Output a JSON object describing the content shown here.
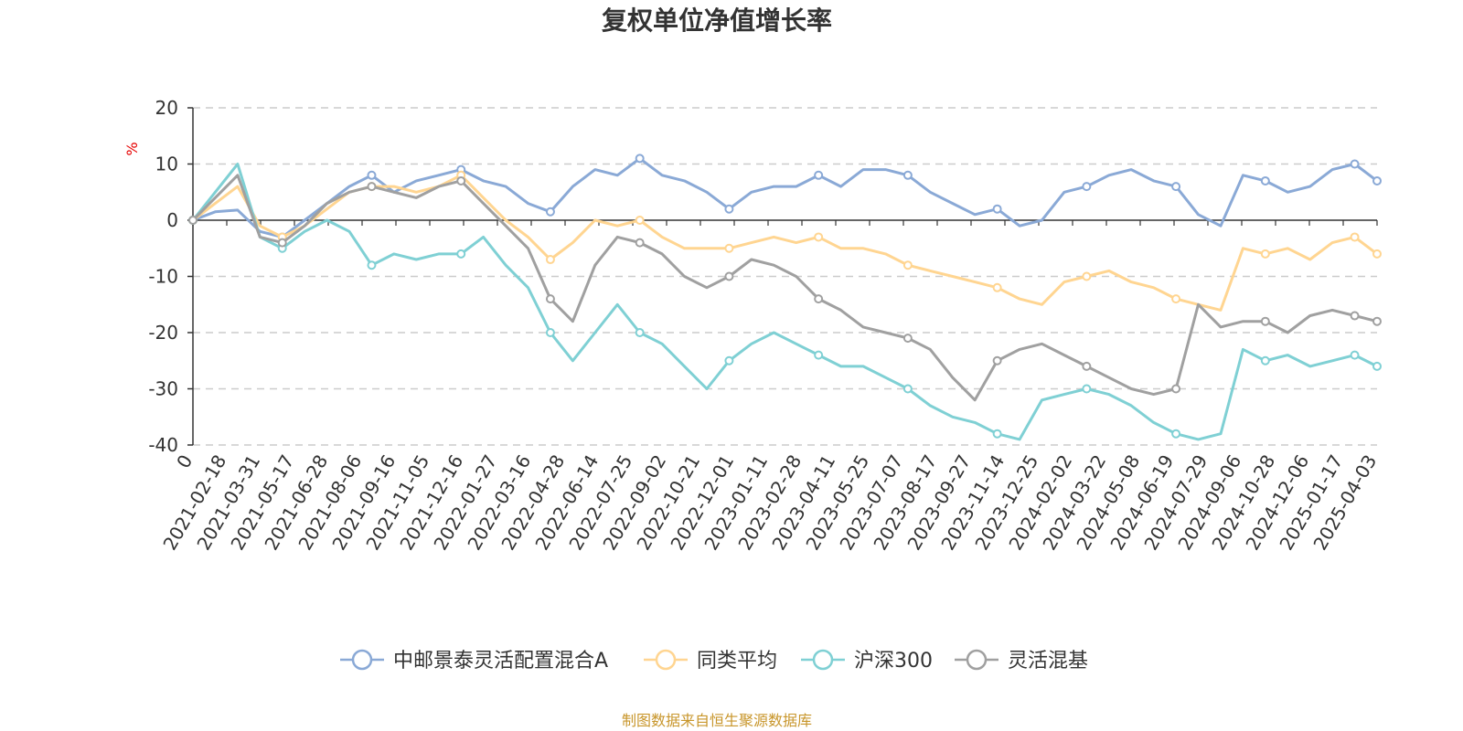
{
  "chart_data": {
    "type": "line",
    "title": "复权单位净值增长率",
    "ylabel": "%",
    "ylim": [
      -40,
      20
    ],
    "yticks": [
      "20",
      "10",
      "0",
      "-10",
      "-20",
      "-30",
      "-40"
    ],
    "ytick_values": [
      20,
      10,
      0,
      -10,
      -20,
      -30,
      -40
    ],
    "grid": true,
    "legend_position": "bottom-center",
    "x_labels": [
      "0",
      "2021-02-18",
      "2021-03-31",
      "2021-05-17",
      "2021-06-28",
      "2021-08-06",
      "2021-09-16",
      "2021-11-05",
      "2021-12-16",
      "2022-01-27",
      "2022-03-16",
      "2022-04-28",
      "2022-06-14",
      "2022-07-25",
      "2022-09-02",
      "2022-10-21",
      "2022-12-01",
      "2023-01-11",
      "2023-02-28",
      "2023-04-11",
      "2023-05-25",
      "2023-07-07",
      "2023-08-17",
      "2023-09-27",
      "2023-11-14",
      "2023-12-25",
      "2024-02-02",
      "2024-03-22",
      "2024-05-08",
      "2024-06-19",
      "2024-07-29",
      "2024-09-06",
      "2024-10-28",
      "2024-12-06",
      "2025-01-17",
      "2025-04-03"
    ],
    "series": [
      {
        "name": "中邮景泰灵活配置混合A",
        "color": "#8aa9d6",
        "values": [
          0,
          1.5,
          1.8,
          -2,
          -3,
          0,
          3,
          6,
          8,
          5,
          7,
          8,
          9,
          7,
          6,
          3,
          1.5,
          6,
          9,
          8,
          11,
          8,
          7,
          5,
          2,
          5,
          6,
          6,
          8,
          6,
          9,
          9,
          8,
          5,
          3,
          1,
          2,
          -1,
          0,
          5,
          6,
          8,
          9,
          7,
          6,
          1,
          -1,
          8,
          7,
          5,
          6,
          9,
          10,
          7
        ]
      },
      {
        "name": "同类平均",
        "color": "#ffd591",
        "values": [
          0,
          3,
          6,
          -1,
          -3,
          -1,
          2,
          5,
          6,
          6,
          5,
          6,
          8,
          4,
          0,
          -3,
          -7,
          -4,
          0,
          -1,
          0,
          -3,
          -5,
          -5,
          -5,
          -4,
          -3,
          -4,
          -3,
          -5,
          -5,
          -6,
          -8,
          -9,
          -10,
          -11,
          -12,
          -14,
          -15,
          -11,
          -10,
          -9,
          -11,
          -12,
          -14,
          -15,
          -16,
          -5,
          -6,
          -5,
          -7,
          -4,
          -3,
          -6
        ]
      },
      {
        "name": "沪深300",
        "color": "#7fd0d4",
        "values": [
          0,
          5,
          10,
          -3,
          -5,
          -2,
          0,
          -2,
          -8,
          -6,
          -7,
          -6,
          -6,
          -3,
          -8,
          -12,
          -20,
          -25,
          -20,
          -15,
          -20,
          -22,
          -26,
          -30,
          -25,
          -22,
          -20,
          -22,
          -24,
          -26,
          -26,
          -28,
          -30,
          -33,
          -35,
          -36,
          -38,
          -39,
          -32,
          -31,
          -30,
          -31,
          -33,
          -36,
          -38,
          -39,
          -38,
          -23,
          -25,
          -24,
          -26,
          -25,
          -24,
          -26
        ]
      },
      {
        "name": "灵活混基",
        "color": "#a0a0a0",
        "values": [
          0,
          4,
          8,
          -3,
          -4,
          -1,
          3,
          5,
          6,
          5,
          4,
          6,
          7,
          3,
          -1,
          -5,
          -14,
          -18,
          -8,
          -3,
          -4,
          -6,
          -10,
          -12,
          -10,
          -7,
          -8,
          -10,
          -14,
          -16,
          -19,
          -20,
          -21,
          -23,
          -28,
          -32,
          -25,
          -23,
          -22,
          -24,
          -26,
          -28,
          -30,
          -31,
          -30,
          -15,
          -19,
          -18,
          -18,
          -20,
          -17,
          -16,
          -17,
          -18
        ]
      }
    ]
  },
  "footer": {
    "source": "制图数据来自恒生聚源数据库"
  }
}
